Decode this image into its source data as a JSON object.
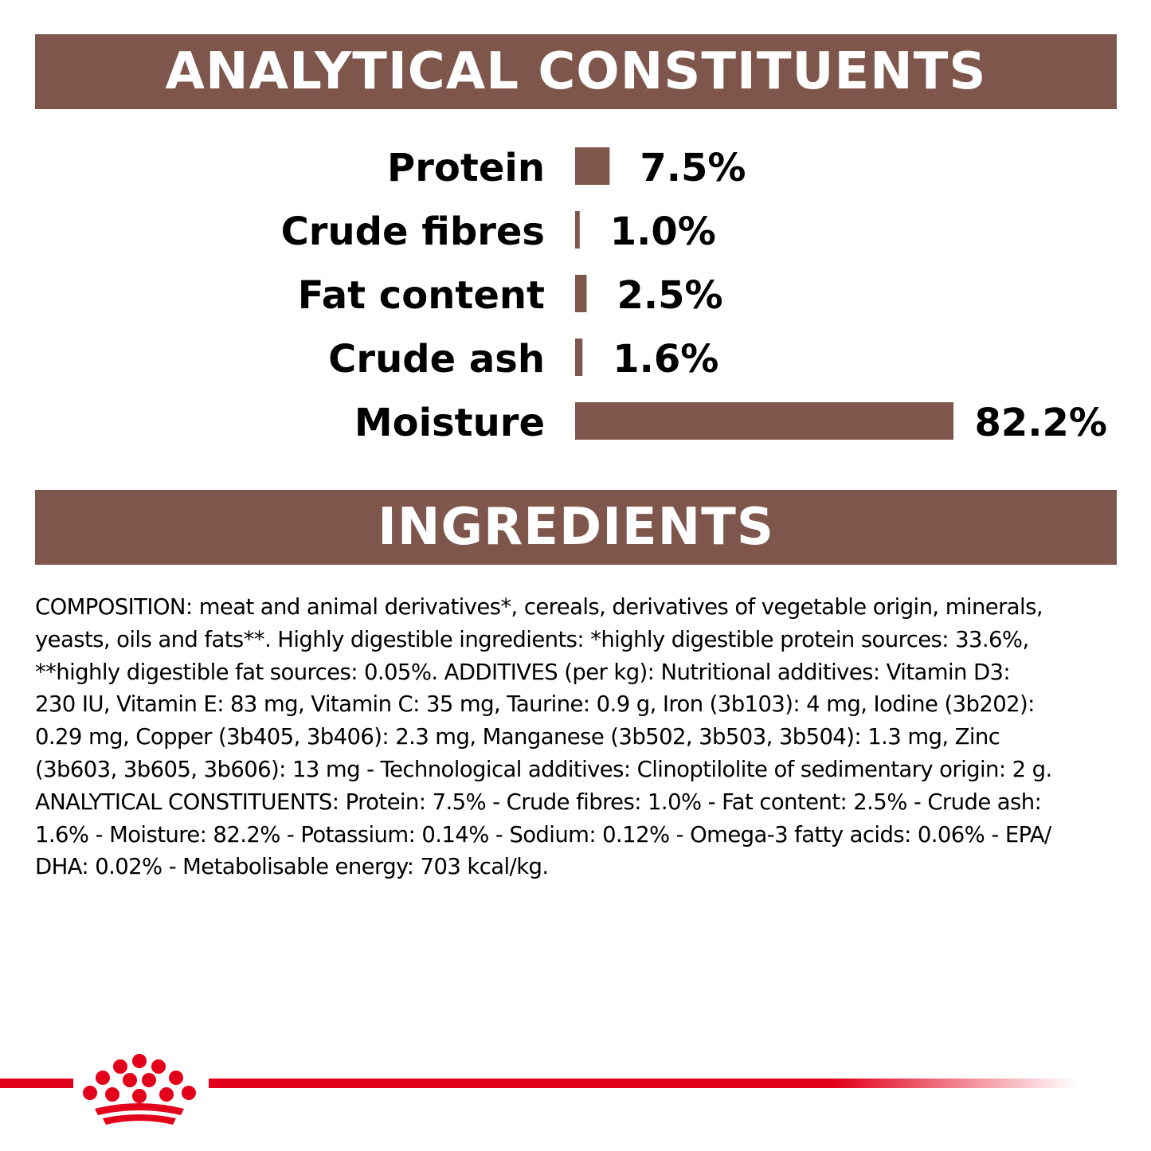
{
  "sections": {
    "analytical_title": "ANALYTICAL CONSTITUENTS",
    "ingredients_title": "INGREDIENTS"
  },
  "colors": {
    "banner": "#7f564b",
    "bar": "#7f564b",
    "brand_red": "#e2001a"
  },
  "chart_data": {
    "type": "bar",
    "orientation": "horizontal",
    "categories": [
      "Protein",
      "Crude fibres",
      "Fat content",
      "Crude ash",
      "Moisture"
    ],
    "values": [
      7.5,
      1.0,
      2.5,
      1.6,
      82.2
    ],
    "value_labels": [
      "7.5%",
      "1.0%",
      "2.5%",
      "1.6%",
      "82.2%"
    ],
    "grid": false
  },
  "ingredients_text": "COMPOSITION: meat and animal derivatives*, cereals, derivatives of vegetable origin, minerals,\nyeasts, oils and fats**. Highly digestible ingredients: *highly digestible protein sources: 33.6%,\n**highly digestible fat sources: 0.05%. ADDITIVES (per kg): Nutritional additives: Vitamin D3:\n230 IU, Vitamin E: 83 mg, Vitamin C: 35 mg, Taurine: 0.9 g, Iron (3b103): 4 mg, Iodine (3b202):\n0.29 mg, Copper (3b405, 3b406): 2.3 mg, Manganese (3b502, 3b503, 3b504): 1.3 mg, Zinc\n(3b603, 3b605, 3b606): 13 mg - Technological additives: Clinoptilolite of sedimentary origin: 2 g.\nANALYTICAL CONSTITUENTS: Protein: 7.5% - Crude fibres: 1.0% - Fat content: 2.5% - Crude ash:\n1.6% - Moisture: 82.2% - Potassium: 0.14% - Sodium: 0.12% - Omega-3 fatty acids: 0.06% - EPA/\nDHA: 0.02% - Metabolisable energy: 703 kcal/kg.",
  "logo_icon": "royal-crown-icon"
}
